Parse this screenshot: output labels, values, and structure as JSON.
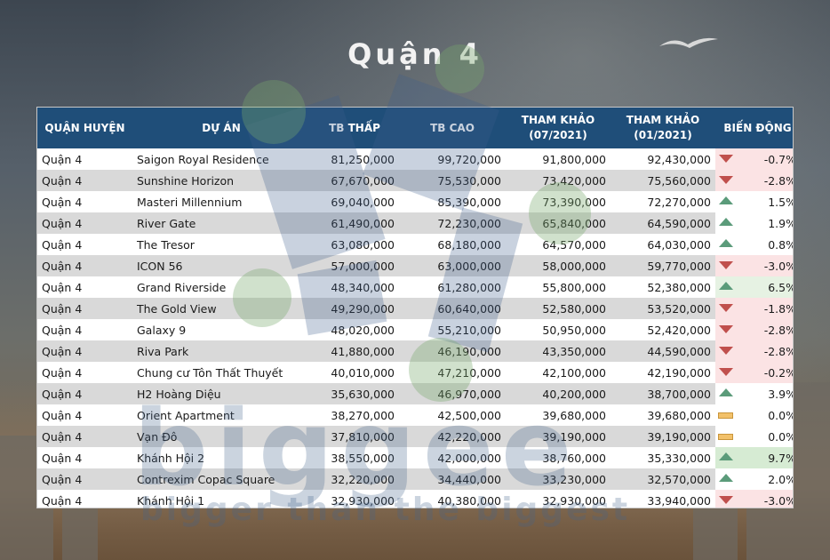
{
  "title": "Quận 4",
  "headers": {
    "district": "QUẬN HUYỆN",
    "project": "DỰ ÁN",
    "low": "TB THẤP",
    "high": "TB CAO",
    "ref_07_line1": "THAM KHẢO",
    "ref_07_line2": "(07/2021)",
    "ref_01_line1": "THAM KHẢO",
    "ref_01_line2": "(01/2021)",
    "change": "BIẾN ĐỘNG"
  },
  "rows": [
    {
      "district": "Quận 4",
      "project": "Saigon Royal Residence",
      "low": "81,250,000",
      "high": "99,720,000",
      "ref07": "91,800,000",
      "ref01": "92,430,000",
      "change": "-0.7%",
      "trend": "down"
    },
    {
      "district": "Quận 4",
      "project": "Sunshine Horizon",
      "low": "67,670,000",
      "high": "75,530,000",
      "ref07": "73,420,000",
      "ref01": "75,560,000",
      "change": "-2.8%",
      "trend": "down"
    },
    {
      "district": "Quận 4",
      "project": "Masteri Millennium",
      "low": "69,040,000",
      "high": "85,390,000",
      "ref07": "73,390,000",
      "ref01": "72,270,000",
      "change": "1.5%",
      "trend": "up"
    },
    {
      "district": "Quận 4",
      "project": "River Gate",
      "low": "61,490,000",
      "high": "72,230,000",
      "ref07": "65,840,000",
      "ref01": "64,590,000",
      "change": "1.9%",
      "trend": "up"
    },
    {
      "district": "Quận 4",
      "project": "The Tresor",
      "low": "63,080,000",
      "high": "68,180,000",
      "ref07": "64,570,000",
      "ref01": "64,030,000",
      "change": "0.8%",
      "trend": "up"
    },
    {
      "district": "Quận 4",
      "project": "ICON 56",
      "low": "57,000,000",
      "high": "63,000,000",
      "ref07": "58,000,000",
      "ref01": "59,770,000",
      "change": "-3.0%",
      "trend": "down"
    },
    {
      "district": "Quận 4",
      "project": "Grand Riverside",
      "low": "48,340,000",
      "high": "61,280,000",
      "ref07": "55,800,000",
      "ref01": "52,380,000",
      "change": "6.5%",
      "trend": "up-mid"
    },
    {
      "district": "Quận 4",
      "project": "The Gold View",
      "low": "49,290,000",
      "high": "60,640,000",
      "ref07": "52,580,000",
      "ref01": "53,520,000",
      "change": "-1.8%",
      "trend": "down"
    },
    {
      "district": "Quận 4",
      "project": "Galaxy 9",
      "low": "48,020,000",
      "high": "55,210,000",
      "ref07": "50,950,000",
      "ref01": "52,420,000",
      "change": "-2.8%",
      "trend": "down"
    },
    {
      "district": "Quận 4",
      "project": "Riva Park",
      "low": "41,880,000",
      "high": "46,190,000",
      "ref07": "43,350,000",
      "ref01": "44,590,000",
      "change": "-2.8%",
      "trend": "down"
    },
    {
      "district": "Quận 4",
      "project": "Chung cư Tôn Thất Thuyết",
      "low": "40,010,000",
      "high": "47,210,000",
      "ref07": "42,100,000",
      "ref01": "42,190,000",
      "change": "-0.2%",
      "trend": "down"
    },
    {
      "district": "Quận 4",
      "project": "H2 Hoàng Diệu",
      "low": "35,630,000",
      "high": "46,970,000",
      "ref07": "40,200,000",
      "ref01": "38,700,000",
      "change": "3.9%",
      "trend": "up"
    },
    {
      "district": "Quận 4",
      "project": "Orient Apartment",
      "low": "38,270,000",
      "high": "42,500,000",
      "ref07": "39,680,000",
      "ref01": "39,680,000",
      "change": "0.0%",
      "trend": "flat"
    },
    {
      "district": "Quận 4",
      "project": "Vạn Đô",
      "low": "37,810,000",
      "high": "42,220,000",
      "ref07": "39,190,000",
      "ref01": "39,190,000",
      "change": "0.0%",
      "trend": "flat"
    },
    {
      "district": "Quận 4",
      "project": "Khánh Hội 2",
      "low": "38,550,000",
      "high": "42,000,000",
      "ref07": "38,760,000",
      "ref01": "35,330,000",
      "change": "9.7%",
      "trend": "up-strong"
    },
    {
      "district": "Quận 4",
      "project": "Contrexim Copac Square",
      "low": "32,220,000",
      "high": "34,440,000",
      "ref07": "33,230,000",
      "ref01": "32,570,000",
      "change": "2.0%",
      "trend": "up"
    },
    {
      "district": "Quận 4",
      "project": "Khánh Hội 1",
      "low": "32,930,000",
      "high": "40,380,000",
      "ref07": "32,930,000",
      "ref01": "33,940,000",
      "change": "-3.0%",
      "trend": "down"
    }
  ],
  "watermark": {
    "brand": "biggee",
    "slogan": "bigger than the biggest"
  },
  "colors": {
    "header_bg": "#1f4e79",
    "down_arrow": "#c0504d",
    "up_arrow": "#5b9b7a",
    "flat_marker": "#f2c16a"
  }
}
